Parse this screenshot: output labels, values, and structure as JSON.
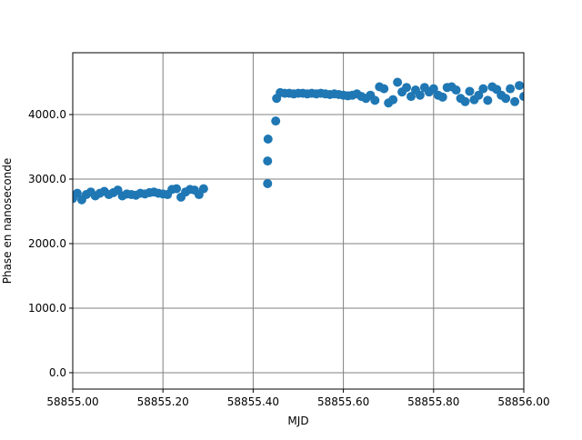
{
  "chart_data": {
    "type": "scatter",
    "xlabel": "MJD",
    "ylabel": "Phase en nanoseconde",
    "color": "#1f77b4",
    "grid": true,
    "xlim": [
      58855.0,
      58856.0
    ],
    "xticks": [
      {
        "value": 58855.0,
        "label": "58855.00"
      },
      {
        "value": 58855.2,
        "label": "58855.20"
      },
      {
        "value": 58855.4,
        "label": "58855.40"
      },
      {
        "value": 58855.6,
        "label": "58855.60"
      },
      {
        "value": 58855.8,
        "label": "58855.80"
      },
      {
        "value": 58856.0,
        "label": "58856.00"
      }
    ],
    "ylim": [
      -254,
      4958
    ],
    "yticks": [
      {
        "value": 0,
        "label": "0.0"
      },
      {
        "value": 1000,
        "label": "1000.0"
      },
      {
        "value": 2000,
        "label": "2000.0"
      },
      {
        "value": 3000,
        "label": "3000.0"
      },
      {
        "value": 4000,
        "label": "4000.0"
      }
    ],
    "x": [
      58855.0,
      58855.01,
      58855.02,
      58855.03,
      58855.04,
      58855.05,
      58855.06,
      58855.07,
      58855.08,
      58855.09,
      58855.1,
      58855.11,
      58855.12,
      58855.13,
      58855.14,
      58855.15,
      58855.16,
      58855.17,
      58855.18,
      58855.19,
      58855.2,
      58855.21,
      58855.22,
      58855.23,
      58855.24,
      58855.25,
      58855.26,
      58855.27,
      58855.28,
      58855.29,
      58855.432,
      58855.432,
      58855.433,
      58855.45,
      58855.452,
      58855.46,
      58855.47,
      58855.48,
      58855.49,
      58855.5,
      58855.51,
      58855.52,
      58855.53,
      58855.54,
      58855.55,
      58855.56,
      58855.57,
      58855.58,
      58855.59,
      58855.6,
      58855.61,
      58855.62,
      58855.63,
      58855.64,
      58855.65,
      58855.66,
      58855.67,
      58855.68,
      58855.69,
      58855.7,
      58855.71,
      58855.72,
      58855.73,
      58855.74,
      58855.75,
      58855.76,
      58855.77,
      58855.78,
      58855.79,
      58855.8,
      58855.81,
      58855.82,
      58855.83,
      58855.84,
      58855.85,
      58855.86,
      58855.87,
      58855.88,
      58855.89,
      58855.9,
      58855.91,
      58855.92,
      58855.93,
      58855.94,
      58855.95,
      58855.96,
      58855.97,
      58855.98,
      58855.99,
      58856.0
    ],
    "values": [
      2700,
      2780,
      2680,
      2760,
      2800,
      2740,
      2780,
      2810,
      2760,
      2790,
      2830,
      2740,
      2770,
      2760,
      2750,
      2780,
      2770,
      2790,
      2800,
      2780,
      2770,
      2760,
      2840,
      2850,
      2720,
      2800,
      2840,
      2830,
      2760,
      2850,
      2930,
      3280,
      3620,
      3900,
      4250,
      4340,
      4330,
      4330,
      4320,
      4330,
      4330,
      4320,
      4330,
      4320,
      4330,
      4320,
      4310,
      4320,
      4310,
      4300,
      4290,
      4300,
      4320,
      4280,
      4250,
      4300,
      4220,
      4430,
      4400,
      4180,
      4230,
      4500,
      4350,
      4420,
      4280,
      4380,
      4300,
      4420,
      4350,
      4400,
      4300,
      4270,
      4420,
      4430,
      4380,
      4250,
      4200,
      4360,
      4230,
      4300,
      4400,
      4220,
      4430,
      4390,
      4300,
      4250,
      4400,
      4200,
      4450,
      4280
    ]
  }
}
